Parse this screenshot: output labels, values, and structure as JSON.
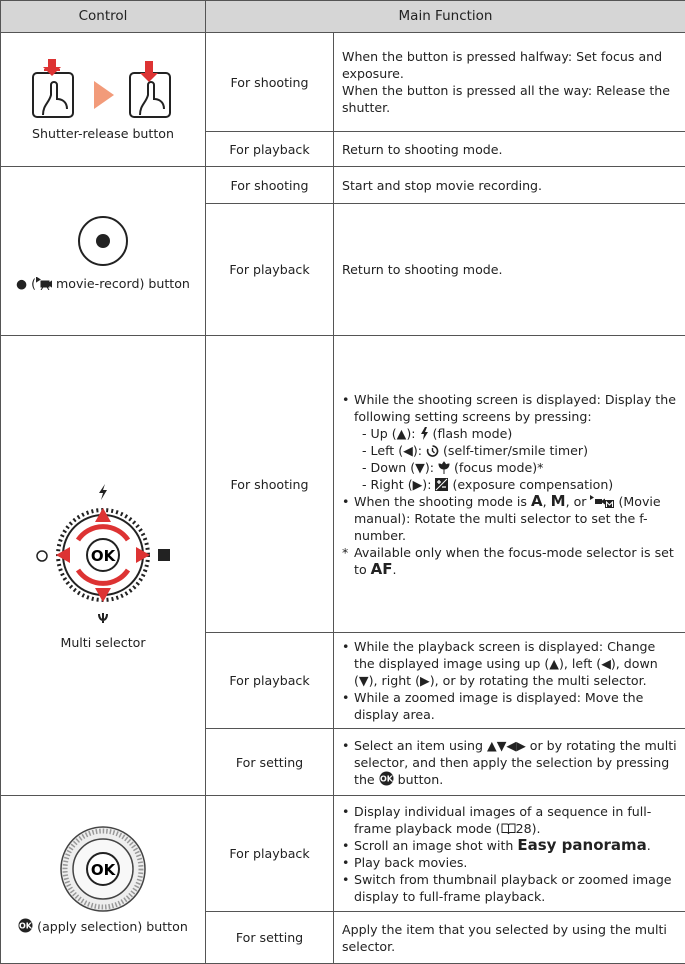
{
  "header": {
    "control": "Control",
    "function": "Main Function"
  },
  "rows": [
    {
      "control": [
        {
          "t": "Shutter-release button"
        }
      ],
      "functions": [
        {
          "mode": "For shooting",
          "lines": [
            [
              {
                "t": "When the button is pressed halfway: Set focus and exposure."
              }
            ],
            [
              {
                "t": "When the button is pressed all the way: Release the shutter."
              }
            ]
          ]
        },
        {
          "mode": "For playback",
          "lines": [
            [
              {
                "t": "Return to shooting mode."
              }
            ]
          ]
        }
      ]
    },
    {
      "control": [
        {
          "t": "● ("
        },
        {
          "icon": "movie"
        },
        {
          "t": " movie-record) button"
        }
      ],
      "functions": [
        {
          "mode": "For shooting",
          "lines": [
            [
              {
                "t": "Start and stop movie recording."
              }
            ]
          ]
        },
        {
          "mode": "For playback",
          "lines": [
            [
              {
                "t": "Return to shooting mode."
              }
            ]
          ]
        }
      ]
    },
    {
      "control": [
        {
          "t": "Multi selector"
        }
      ],
      "functions": [
        {
          "mode": "For shooting",
          "items": [
            {
              "parts": [
                {
                  "t": "While the shooting screen is displayed: Display the following setting screens by pressing:"
                }
              ],
              "sub": [
                [
                  {
                    "t": "- Up (▲): "
                  },
                  {
                    "icon": "flash"
                  },
                  {
                    "t": " (flash mode)"
                  }
                ],
                [
                  {
                    "t": "- Left (◀): "
                  },
                  {
                    "icon": "timer"
                  },
                  {
                    "t": " (self-timer/smile timer)"
                  }
                ],
                [
                  {
                    "t": "- Down (▼): "
                  },
                  {
                    "icon": "macro"
                  },
                  {
                    "t": " (focus mode)*"
                  }
                ],
                [
                  {
                    "t": "- Right (▶): "
                  },
                  {
                    "icon": "exposure"
                  },
                  {
                    "t": " (exposure compensation)"
                  }
                ]
              ]
            },
            {
              "parts": [
                {
                  "t": "When the shooting mode is "
                },
                {
                  "t": "A",
                  "b": true
                },
                {
                  "t": ", "
                },
                {
                  "t": "M",
                  "b": true
                },
                {
                  "t": ", or "
                },
                {
                  "icon": "moviem"
                },
                {
                  "t": " (Movie manual): Rotate the multi selector to set the f-number."
                }
              ]
            }
          ],
          "note": [
            {
              "t": "*"
            },
            {
              "t": "Available only when the focus-mode selector is set to "
            },
            {
              "t": "AF",
              "b": true
            },
            {
              "t": "."
            }
          ]
        },
        {
          "mode": "For playback",
          "items": [
            {
              "parts": [
                {
                  "t": "While the playback screen is displayed: Change the displayed image using up (▲), left (◀), down (▼), right (▶), or by rotating the multi selector."
                }
              ]
            },
            {
              "parts": [
                {
                  "t": "While a zoomed image is displayed: Move the display area."
                }
              ]
            }
          ]
        },
        {
          "mode": "For setting",
          "items": [
            {
              "parts": [
                {
                  "t": "Select an item using ▲▼◀▶ or by rotating the multi selector, and then apply the selection by pressing the "
                },
                {
                  "icon": "ok"
                },
                {
                  "t": " button."
                }
              ]
            }
          ]
        }
      ]
    },
    {
      "control": [
        {
          "icon": "ok"
        },
        {
          "t": " (apply selection) button"
        }
      ],
      "functions": [
        {
          "mode": "For playback",
          "items": [
            {
              "parts": [
                {
                  "t": "Display individual images of a sequence in full-frame playback mode ("
                },
                {
                  "icon": "book"
                },
                {
                  "t": "28)."
                }
              ]
            },
            {
              "parts": [
                {
                  "t": "Scroll an image shot with "
                },
                {
                  "t": "Easy panorama",
                  "b": true
                },
                {
                  "t": "."
                }
              ]
            },
            {
              "parts": [
                {
                  "t": "Play back movies."
                }
              ]
            },
            {
              "parts": [
                {
                  "t": "Switch from thumbnail playback or zoomed image display to full-frame playback."
                }
              ]
            }
          ]
        },
        {
          "mode": "For setting",
          "lines": [
            [
              {
                "t": "Apply the item that you selected by using the multi selector."
              }
            ]
          ]
        }
      ]
    }
  ]
}
